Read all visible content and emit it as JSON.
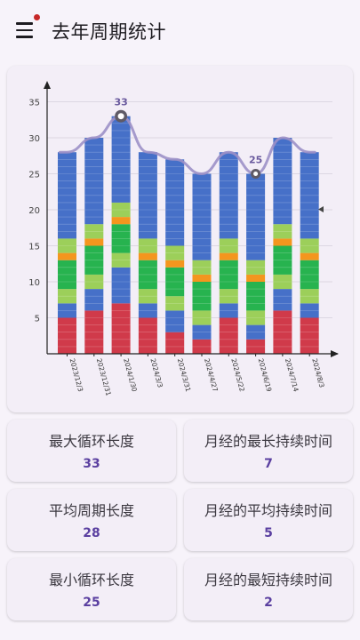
{
  "appbar": {
    "title": "去年周期统计",
    "menu_icon": "hamburger-menu-icon",
    "notification_color": "#c62828"
  },
  "chart_data": {
    "type": "bar",
    "stacked": true,
    "categories": [
      "2023/12/3",
      "2023/12/31",
      "2024/1/30",
      "2024/3/3",
      "2024/3/31",
      "2024/4/27",
      "2024/5/22",
      "2024/6/19",
      "2024/7/14",
      "2024/8/3"
    ],
    "totals": [
      28,
      30,
      33,
      28,
      27,
      25,
      28,
      25,
      30,
      28
    ],
    "series": [
      {
        "color": "#d03a4a",
        "values": [
          5,
          6,
          7,
          5,
          3,
          2,
          5,
          2,
          6,
          5
        ]
      },
      {
        "color": "#4670c8",
        "values": [
          2,
          3,
          5,
          2,
          3,
          2,
          2,
          2,
          3,
          2
        ]
      },
      {
        "color": "#9ccf5a",
        "values": [
          2,
          2,
          2,
          2,
          2,
          2,
          2,
          2,
          2,
          2
        ]
      },
      {
        "color": "#27b34f",
        "values": [
          4,
          4,
          4,
          4,
          4,
          4,
          4,
          4,
          4,
          4
        ]
      },
      {
        "color": "#f4961e",
        "values": [
          1,
          1,
          1,
          1,
          1,
          1,
          1,
          1,
          1,
          1
        ]
      },
      {
        "color": "#9ccf5a",
        "values": [
          2,
          2,
          2,
          2,
          2,
          2,
          2,
          2,
          2,
          2
        ]
      },
      {
        "color": "#4670c8",
        "values": [
          12,
          12,
          12,
          12,
          12,
          12,
          12,
          12,
          12,
          12
        ]
      }
    ],
    "trend_line_color": "#9c90c6",
    "highlighted": [
      {
        "index": 2,
        "label": "33"
      },
      {
        "index": 7,
        "label": "25"
      }
    ],
    "ylim": [
      0,
      36
    ],
    "yticks": [
      5,
      10,
      15,
      20,
      25,
      30,
      35
    ],
    "grid": true,
    "xlabel": "",
    "ylabel": ""
  },
  "stats": [
    {
      "label": "最大循环长度",
      "value": "33"
    },
    {
      "label": "月经的最长持续时间",
      "value": "7"
    },
    {
      "label": "平均周期长度",
      "value": "28"
    },
    {
      "label": "月经的平均持续时间",
      "value": "5"
    },
    {
      "label": "最小循环长度",
      "value": "25"
    },
    {
      "label": "月经的最短持续时间",
      "value": "2"
    }
  ]
}
